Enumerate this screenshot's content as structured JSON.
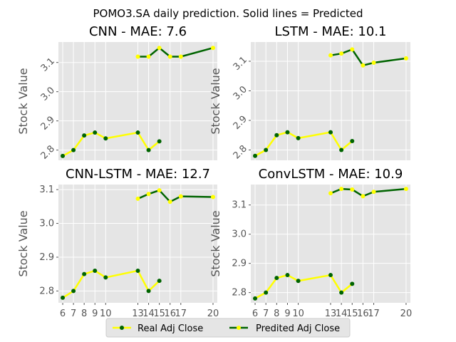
{
  "suptitle": "POMO3.SA daily prediction. Solid lines = Predicted",
  "colors": {
    "panel_bg": "#E5E5E5",
    "grid": "#FFFFFF",
    "real_line": "#FFFF00",
    "real_marker": "#006400",
    "pred_line": "#006400",
    "pred_marker": "#FFFF00",
    "tick_text": "#555555"
  },
  "legend": {
    "real_label": "Real Adj Close",
    "pred_label": "Predited Adj Close"
  },
  "chart_data": [
    {
      "type": "line",
      "title": "CNN - MAE: 7.6",
      "ylabel": "Stock Value",
      "xlabel": "",
      "xlim": [
        5.6,
        20.4
      ],
      "ylim": [
        2.765,
        3.17
      ],
      "yticks": [
        2.8,
        2.9,
        3.0,
        3.1
      ],
      "ytick_labels": [
        "2.8",
        "2.9",
        "3.0",
        "3.1"
      ],
      "ytick_rotation": 45,
      "xticks": [
        6,
        7,
        8,
        9,
        10,
        13,
        14,
        15,
        16,
        17,
        20
      ],
      "show_xtick_labels": false,
      "grid": true,
      "series": [
        {
          "name": "Real Adj Close",
          "x": [
            6,
            7,
            8,
            9,
            10,
            13,
            14,
            15
          ],
          "y": [
            2.78,
            2.8,
            2.85,
            2.86,
            2.84,
            2.86,
            2.8,
            2.83
          ]
        },
        {
          "name": "Predited Adj Close",
          "x": [
            13,
            14,
            15,
            16,
            17,
            20
          ],
          "y": [
            3.12,
            3.12,
            3.15,
            3.12,
            3.12,
            3.15
          ]
        }
      ]
    },
    {
      "type": "line",
      "title": "LSTM - MAE: 10.1",
      "ylabel": "Stock Value",
      "xlabel": "",
      "xlim": [
        5.6,
        20.4
      ],
      "ylim": [
        2.765,
        3.165
      ],
      "yticks": [
        2.8,
        2.9,
        3.0,
        3.1
      ],
      "ytick_labels": [
        "2.8",
        "2.9",
        "3.0",
        "3.1"
      ],
      "ytick_rotation": 45,
      "xticks": [
        6,
        7,
        8,
        9,
        10,
        13,
        14,
        15,
        16,
        17,
        20
      ],
      "show_xtick_labels": false,
      "grid": true,
      "series": [
        {
          "name": "Real Adj Close",
          "x": [
            6,
            7,
            8,
            9,
            10,
            13,
            14,
            15
          ],
          "y": [
            2.78,
            2.8,
            2.85,
            2.86,
            2.84,
            2.86,
            2.8,
            2.83
          ]
        },
        {
          "name": "Predited Adj Close",
          "x": [
            13,
            14,
            15,
            16,
            17,
            20
          ],
          "y": [
            3.12,
            3.126,
            3.14,
            3.086,
            3.095,
            3.11
          ]
        }
      ]
    },
    {
      "type": "line",
      "title": "CNN-LSTM - MAE: 12.7",
      "ylabel": "Stock Value",
      "xlabel": "",
      "xlim": [
        5.6,
        20.4
      ],
      "ylim": [
        2.765,
        3.115
      ],
      "yticks": [
        2.8,
        2.9,
        3.0,
        3.1
      ],
      "ytick_labels": [
        "2.8",
        "2.9",
        "3.0",
        "3.1"
      ],
      "ytick_rotation": 0,
      "xticks": [
        6,
        7,
        8,
        9,
        10,
        13,
        14,
        15,
        16,
        17,
        20
      ],
      "xtick_labels": [
        "6",
        "7",
        "8",
        "9",
        "10",
        "13",
        "14",
        "15",
        "16",
        "17",
        "20"
      ],
      "show_xtick_labels": true,
      "grid": true,
      "series": [
        {
          "name": "Real Adj Close",
          "x": [
            6,
            7,
            8,
            9,
            10,
            13,
            14,
            15
          ],
          "y": [
            2.78,
            2.8,
            2.85,
            2.86,
            2.84,
            2.86,
            2.8,
            2.83
          ]
        },
        {
          "name": "Predited Adj Close",
          "x": [
            13,
            14,
            15,
            16,
            17,
            20
          ],
          "y": [
            3.073,
            3.087,
            3.098,
            3.064,
            3.08,
            3.078
          ]
        }
      ]
    },
    {
      "type": "line",
      "title": "ConvLSTM - MAE: 10.9",
      "ylabel": "Stock Value",
      "xlabel": "",
      "xlim": [
        5.6,
        20.4
      ],
      "ylim": [
        2.765,
        3.17
      ],
      "yticks": [
        2.8,
        2.9,
        3.0,
        3.1
      ],
      "ytick_labels": [
        "2.8",
        "2.9",
        "3.0",
        "3.1"
      ],
      "ytick_rotation": 0,
      "xticks": [
        6,
        7,
        8,
        9,
        10,
        13,
        14,
        15,
        16,
        17,
        20
      ],
      "xtick_labels": [
        "6",
        "7",
        "8",
        "9",
        "10",
        "13",
        "14",
        "15",
        "16",
        "17",
        "20"
      ],
      "show_xtick_labels": true,
      "grid": true,
      "series": [
        {
          "name": "Real Adj Close",
          "x": [
            6,
            7,
            8,
            9,
            10,
            13,
            14,
            15
          ],
          "y": [
            2.78,
            2.8,
            2.85,
            2.86,
            2.84,
            2.86,
            2.8,
            2.83
          ]
        },
        {
          "name": "Predited Adj Close",
          "x": [
            13,
            14,
            15,
            16,
            17,
            20
          ],
          "y": [
            3.14,
            3.155,
            3.153,
            3.13,
            3.145,
            3.155
          ]
        }
      ]
    }
  ]
}
